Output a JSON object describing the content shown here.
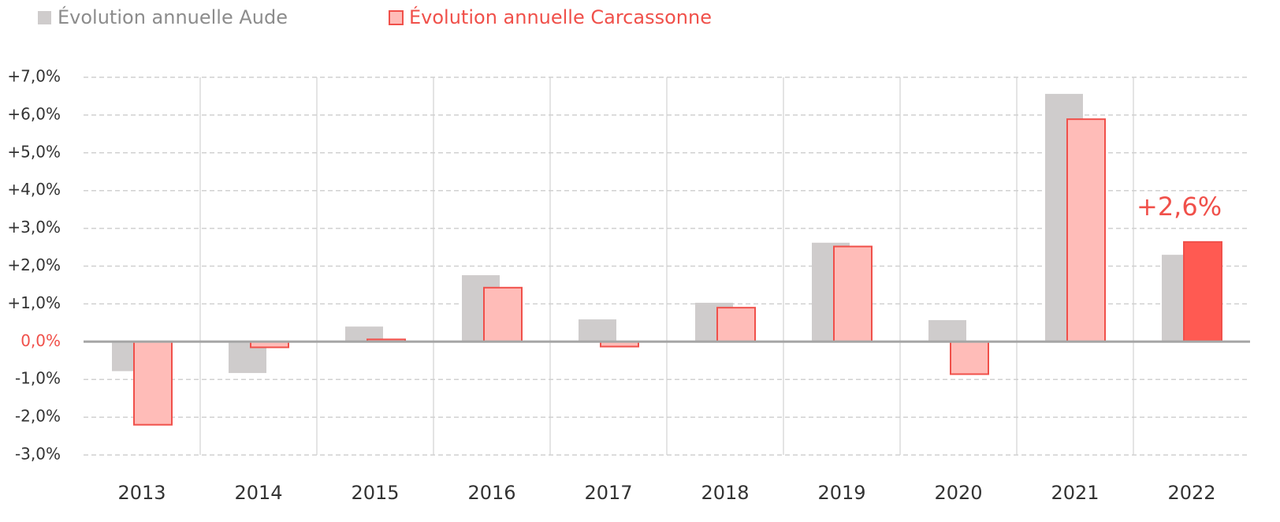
{
  "chart_data": {
    "type": "bar",
    "categories": [
      "2013",
      "2014",
      "2015",
      "2016",
      "2017",
      "2018",
      "2019",
      "2020",
      "2021",
      "2022"
    ],
    "series": [
      {
        "name": "Évolution annuelle Aude",
        "color": "#cfcccc",
        "text_color": "#8c8c8c",
        "values": [
          -0.78,
          -0.83,
          0.4,
          1.76,
          0.59,
          1.03,
          2.62,
          0.57,
          6.56,
          2.3
        ]
      },
      {
        "name": "Évolution annuelle Carcassonne",
        "color": "#ffbcb8",
        "stroke": "#f0504a",
        "text_color": "#f0504a",
        "colors": [
          "#ffbcb8",
          "#ffbcb8",
          "#ffbcb8",
          "#ffbcb8",
          "#ffbcb8",
          "#ffbcb8",
          "#ffbcb8",
          "#ffbcb8",
          "#ffbcb8",
          "#ff5a52"
        ],
        "values": [
          -2.2,
          -0.15,
          0.06,
          1.43,
          -0.13,
          0.9,
          2.52,
          -0.86,
          5.89,
          2.64
        ],
        "value_labels": [
          null,
          null,
          null,
          null,
          null,
          null,
          null,
          null,
          null,
          "+2,6%"
        ]
      }
    ],
    "ylim": [
      -3,
      7
    ],
    "yticks": [
      {
        "value": -3,
        "label": "-3,0%"
      },
      {
        "value": -2,
        "label": "-2,0%"
      },
      {
        "value": -1,
        "label": "-1,0%"
      },
      {
        "value": 0,
        "label": "0,0%"
      },
      {
        "value": 1,
        "label": "+1,0%"
      },
      {
        "value": 2,
        "label": "+2,0%"
      },
      {
        "value": 3,
        "label": "+3,0%"
      },
      {
        "value": 4,
        "label": "+4,0%"
      },
      {
        "value": 5,
        "label": "+5,0%"
      },
      {
        "value": 6,
        "label": "+6,0%"
      },
      {
        "value": 7,
        "label": "+7,0%"
      }
    ],
    "grid": true,
    "zero_label_color": "#f0504a",
    "legend": "top-left"
  }
}
